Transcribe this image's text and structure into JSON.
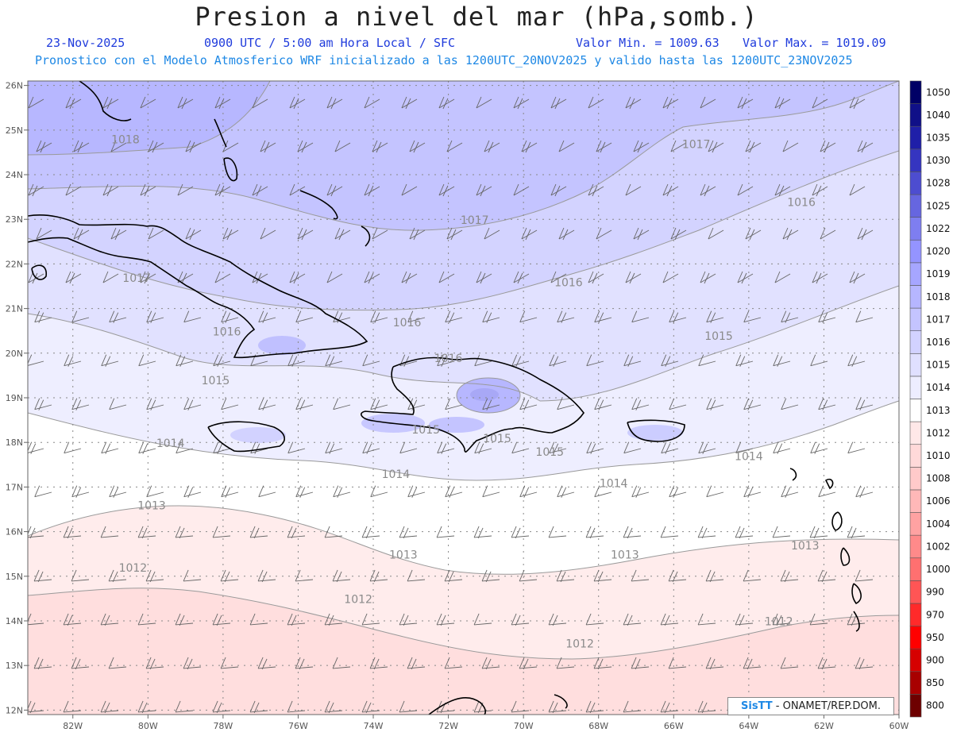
{
  "title": "Presion a nivel del mar (hPa,somb.)",
  "info": {
    "date": "23-Nov-2025",
    "time": "0900 UTC / 5:00 am Hora Local / SFC",
    "min": "Valor Min. = 1009.63",
    "max": "Valor Max. = 1019.09",
    "model_line": "Pronostico con el Modelo Atmosferico WRF inicializado a las 1200UTC_20NOV2025 y valido hasta las  1200UTC_23NOV2025"
  },
  "credit": {
    "brand": "SisTT",
    "text": " - ONAMET/REP.DOM."
  },
  "map": {
    "lon_range": [
      -83.2,
      -60.0
    ],
    "lat_range": [
      11.9,
      26.1
    ],
    "lon_ticks": [
      "82W",
      "80W",
      "78W",
      "76W",
      "74W",
      "72W",
      "70W",
      "68W",
      "66W",
      "64W",
      "62W",
      "60W"
    ],
    "lat_ticks": [
      "12N",
      "13N",
      "14N",
      "15N",
      "16N",
      "17N",
      "18N",
      "19N",
      "20N",
      "21N",
      "22N",
      "23N",
      "24N",
      "25N",
      "26N"
    ],
    "contour_labels": [
      {
        "text": "1018",
        "lon": -80.6,
        "lat": 24.7
      },
      {
        "text": "1017",
        "lon": -65.4,
        "lat": 24.6
      },
      {
        "text": "1016",
        "lon": -62.6,
        "lat": 23.3
      },
      {
        "text": "1017",
        "lon": -71.3,
        "lat": 22.9
      },
      {
        "text": "1016",
        "lon": -68.8,
        "lat": 21.5
      },
      {
        "text": "1017",
        "lon": -80.3,
        "lat": 21.6
      },
      {
        "text": "1016",
        "lon": -73.1,
        "lat": 20.6
      },
      {
        "text": "1016",
        "lon": -77.9,
        "lat": 20.4
      },
      {
        "text": "1015",
        "lon": -64.8,
        "lat": 20.3
      },
      {
        "text": "1016",
        "lon": -72.0,
        "lat": 19.8
      },
      {
        "text": "1015",
        "lon": -78.2,
        "lat": 19.3
      },
      {
        "text": "1015",
        "lon": -72.6,
        "lat": 18.2
      },
      {
        "text": "1015",
        "lon": -70.7,
        "lat": 18.0
      },
      {
        "text": "1015",
        "lon": -69.3,
        "lat": 17.7
      },
      {
        "text": "1014",
        "lon": -79.4,
        "lat": 17.9
      },
      {
        "text": "1014",
        "lon": -64.0,
        "lat": 17.6
      },
      {
        "text": "1014",
        "lon": -73.4,
        "lat": 17.2
      },
      {
        "text": "1014",
        "lon": -67.6,
        "lat": 17.0
      },
      {
        "text": "1013",
        "lon": -79.9,
        "lat": 16.5
      },
      {
        "text": "1013",
        "lon": -73.2,
        "lat": 15.4
      },
      {
        "text": "1013",
        "lon": -67.3,
        "lat": 15.4
      },
      {
        "text": "1013",
        "lon": -62.5,
        "lat": 15.6
      },
      {
        "text": "1012",
        "lon": -80.4,
        "lat": 15.1
      },
      {
        "text": "1012",
        "lon": -74.4,
        "lat": 14.4
      },
      {
        "text": "1012",
        "lon": -63.2,
        "lat": 13.9
      },
      {
        "text": "1012",
        "lon": -68.5,
        "lat": 13.4
      }
    ],
    "colorbar": {
      "labels": [
        "800",
        "850",
        "900",
        "950",
        "970",
        "990",
        "1000",
        "1002",
        "1004",
        "1006",
        "1008",
        "1010",
        "1012",
        "1013",
        "1014",
        "1015",
        "1016",
        "1017",
        "1018",
        "1019",
        "1020",
        "1022",
        "1025",
        "1028",
        "1030",
        "1035",
        "1040",
        "1050"
      ],
      "colors": [
        "#6e0000",
        "#a80000",
        "#d60000",
        "#ff0000",
        "#ff2a2a",
        "#ff5555",
        "#ff7070",
        "#ff8a8a",
        "#ffa2a2",
        "#ffb8b8",
        "#ffcaca",
        "#ffd9d9",
        "#ffe8e8",
        "#ffffff",
        "#ededff",
        "#e0e0ff",
        "#d2d2ff",
        "#c4c4ff",
        "#b6b6ff",
        "#a6a6ff",
        "#9494ff",
        "#7e7ef0",
        "#6666e0",
        "#4d4dd0",
        "#3535c0",
        "#1f1fa8",
        "#101088",
        "#000066"
      ]
    }
  }
}
